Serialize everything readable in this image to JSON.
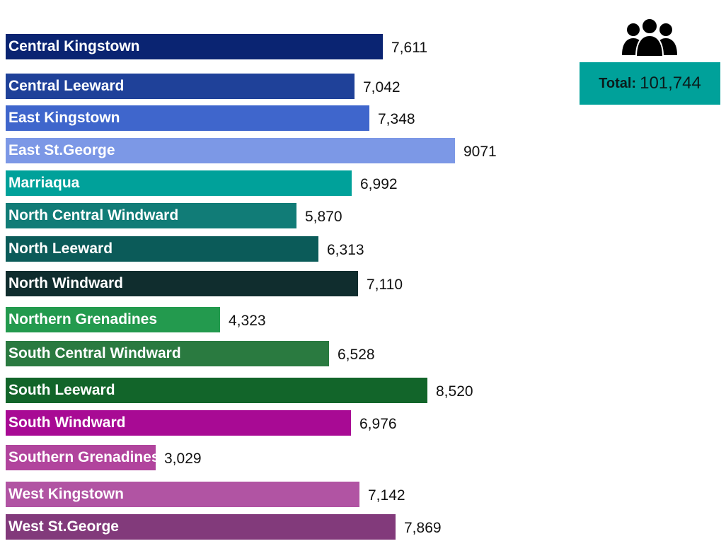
{
  "chart_data": {
    "type": "bar",
    "orientation": "horizontal",
    "categories": [
      "Central Kingstown",
      "Central Leeward",
      "East Kingstown",
      "East St.George",
      "Marriaqua",
      "North Central Windward",
      "North Leeward",
      "North Windward",
      "Northern Grenadines",
      "South Central Windward",
      "South Leeward",
      "South Windward",
      "Southern Grenadines",
      "West Kingstown",
      "West St.George"
    ],
    "values": [
      7611,
      7042,
      7348,
      9071,
      6992,
      5870,
      6313,
      7110,
      4323,
      6528,
      8520,
      6976,
      3029,
      7142,
      7869
    ],
    "value_labels": [
      "7,611",
      "7,042",
      "7,348",
      "9071",
      "6,992",
      "5,870",
      "6,313",
      "7,110",
      "4,323",
      "6,528",
      "8,520",
      "6,976",
      "3,029",
      "7,142",
      "7,869"
    ],
    "colors": [
      "#0A2472",
      "#1F4199",
      "#3F66CC",
      "#7C98E6",
      "#00A19A",
      "#117C77",
      "#0B5B59",
      "#102D2E",
      "#239A4E",
      "#2A7A40",
      "#12652A",
      "#A80A94",
      "#B1449D",
      "#B154A3",
      "#823A7B"
    ],
    "xlim": [
      0,
      9071
    ],
    "grid": false,
    "legend": "none"
  },
  "summary": {
    "icon": "people-group-icon",
    "label": "Total:",
    "value": "101,744",
    "color": "#00A19A"
  }
}
